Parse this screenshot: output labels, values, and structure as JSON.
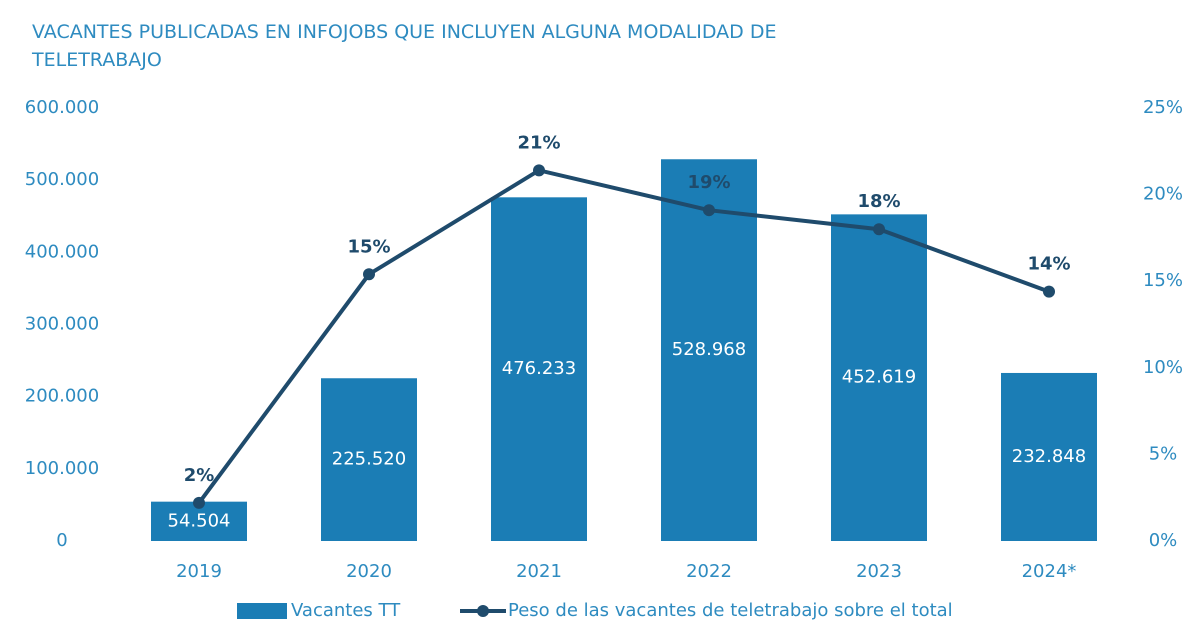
{
  "chart_data": {
    "type": "bar",
    "title": "VACANTES PUBLICADAS EN INFOJOBS QUE INCLUYEN ALGUNA MODALIDAD DE TELETRABAJO",
    "categories": [
      "2019",
      "2020",
      "2021",
      "2022",
      "2023",
      "2024*"
    ],
    "series": [
      {
        "name": "Vacantes TT",
        "type": "bar",
        "color": "#1b7db5",
        "values": [
          54504,
          225520,
          476233,
          528968,
          452619,
          232848
        ],
        "value_labels": [
          "54.504",
          "225.520",
          "476.233",
          "528.968",
          "452.619",
          "232.848"
        ]
      },
      {
        "name": "Peso de las vacantes de teletrabajo sobre el total",
        "type": "line",
        "axis": "y2",
        "color": "#1f4b6c",
        "values": [
          2.2,
          15.4,
          21.4,
          19.1,
          18.0,
          14.4
        ],
        "value_labels": [
          "2%",
          "15%",
          "21%",
          "19%",
          "18%",
          "14%"
        ]
      }
    ],
    "ylim": [
      0,
      600000
    ],
    "yticks": [
      0,
      {
        "value": 100000,
        "label": "100.000"
      },
      {
        "value": 200000,
        "label": "200.000"
      },
      {
        "value": 300000,
        "label": "300.000"
      },
      {
        "value": 400000,
        "label": "400.000"
      },
      {
        "value": 500000,
        "label": "500.000"
      },
      {
        "value": 600000,
        "label": "600.000"
      }
    ],
    "y2lim": [
      0,
      25
    ],
    "y2ticks": [
      {
        "value": 0,
        "label": "0%"
      },
      {
        "value": 5,
        "label": "5%"
      },
      {
        "value": 10,
        "label": "10%"
      },
      {
        "value": 15,
        "label": "15%"
      },
      {
        "value": 20,
        "label": "20%"
      },
      {
        "value": 25,
        "label": "25%"
      }
    ],
    "grid": false,
    "legend": "bottom"
  }
}
